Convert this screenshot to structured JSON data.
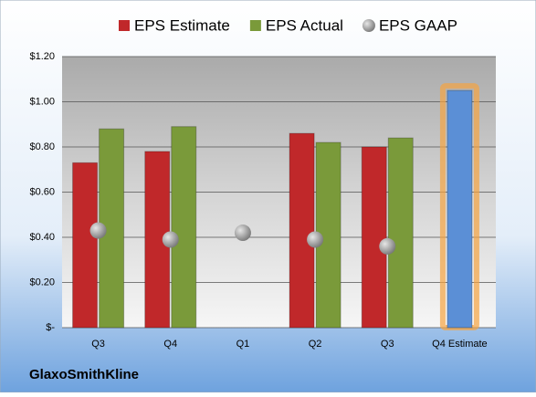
{
  "chart_data": {
    "type": "bar",
    "title": "GlaxoSmithKline",
    "categories": [
      "Q3",
      "Q4",
      "Q1",
      "Q2",
      "Q3",
      "Q4 Estimate"
    ],
    "series": [
      {
        "name": "EPS Estimate",
        "color": "#c0282a",
        "values": [
          0.73,
          0.78,
          null,
          0.86,
          0.8,
          1.05
        ]
      },
      {
        "name": "EPS Actual",
        "color": "#7a9a3a",
        "values": [
          0.88,
          0.89,
          null,
          0.82,
          0.84,
          null
        ]
      },
      {
        "name": "EPS GAAP",
        "color": "#9a9a9a",
        "marker": "sphere",
        "values": [
          0.43,
          0.39,
          0.42,
          0.39,
          0.36,
          null
        ]
      }
    ],
    "highlight": {
      "series": 0,
      "index": 5,
      "color": "#5b8fd6",
      "glow": "#f5a442"
    },
    "ylim": [
      0,
      1.2
    ],
    "yticks": [
      {
        "value": 0,
        "label": "$-"
      },
      {
        "value": 0.2,
        "label": "$0.20"
      },
      {
        "value": 0.4,
        "label": "$0.40"
      },
      {
        "value": 0.6,
        "label": "$0.60"
      },
      {
        "value": 0.8,
        "label": "$0.80"
      },
      {
        "value": 1.0,
        "label": "$1.00"
      },
      {
        "value": 1.2,
        "label": "$1.20"
      }
    ],
    "grid": true
  }
}
